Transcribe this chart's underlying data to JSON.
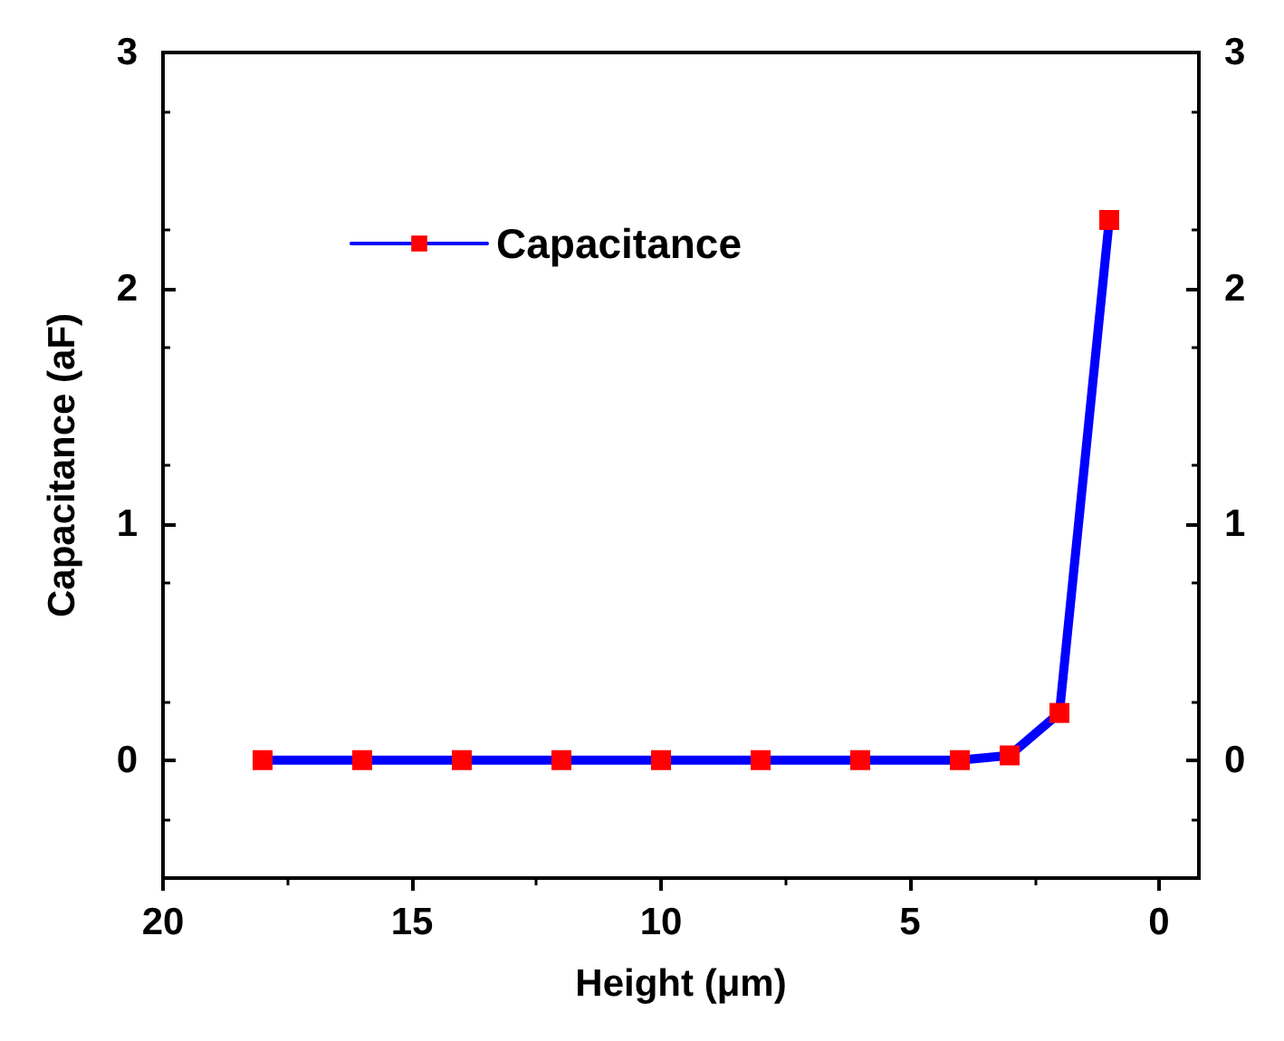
{
  "chart_data": {
    "type": "line",
    "xlabel": "Height (μm)",
    "ylabel": "Capacitance (aF)",
    "x": [
      18,
      16,
      14,
      12,
      10,
      8,
      6,
      4,
      3,
      2,
      1
    ],
    "series": [
      {
        "name": "Capacitance",
        "color": "#0000ff",
        "colors": [
          "#ff0000",
          "#ff0000",
          "#ff0000",
          "#ff0000",
          "#ff0000",
          "#ff0000",
          "#ff0000",
          "#ff0000",
          "#ff0000",
          "#ff0000",
          "#ff0000"
        ],
        "values": [
          0,
          0,
          0,
          0,
          0,
          0,
          0,
          0,
          0.02,
          0.2,
          2.29
        ]
      }
    ],
    "xlim": [
      20,
      -0.8
    ],
    "xticks": [
      20,
      15,
      10,
      5,
      0
    ],
    "ylim": [
      -0.5,
      3
    ],
    "yticks": [
      0,
      1,
      2,
      3
    ],
    "y2lim": [
      -0.5,
      3
    ],
    "y2ticks": [
      0,
      1,
      2,
      3
    ],
    "marker": "square",
    "line_style": "solid",
    "legend": "top left",
    "grid": false
  }
}
